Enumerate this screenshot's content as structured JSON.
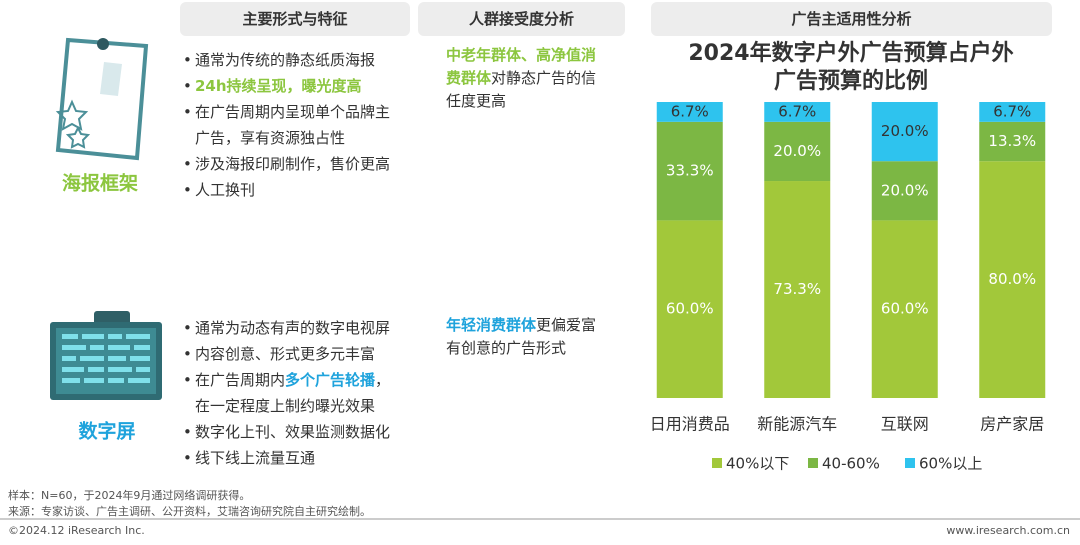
{
  "headers": [
    "主要形式与特征",
    "人群接受度分析",
    "广告主适用性分析"
  ],
  "rows": [
    {
      "label": "海报框架",
      "label_color": "#8cc63f",
      "features": [
        [
          {
            "text": "通常为传统的静态纸质海报"
          }
        ],
        [
          {
            "text": "24h持续呈现，曝光度高",
            "color": "#8cc63f"
          }
        ],
        [
          {
            "text": "在广告周期内呈现单个品牌主广告，享有资源独占性"
          }
        ],
        [
          {
            "text": "涉及海报印刷制作，售价更高"
          }
        ],
        [
          {
            "text": "人工换刊"
          }
        ]
      ],
      "audience": [
        {
          "text": "中老年群体、高净值消费群体",
          "color": "#8cc63f"
        },
        {
          "text": "对静态广告的信任度更高"
        }
      ]
    },
    {
      "label": "数字屏",
      "label_color": "#1fa3dc",
      "features": [
        [
          {
            "text": "通常为动态有声的数字电视屏"
          }
        ],
        [
          {
            "text": "内容创意、形式更多元丰富"
          }
        ],
        [
          {
            "text": "在广告周期内"
          },
          {
            "text": "多个广告轮播",
            "color": "#1fa3dc"
          },
          {
            "text": "，在一定程度上制约曝光效果"
          }
        ],
        [
          {
            "text": "数字化上刊、效果监测数据化"
          }
        ],
        [
          {
            "text": "线下线上流量互通"
          }
        ]
      ],
      "audience": [
        {
          "text": "年轻消费群体",
          "color": "#1fa3dc"
        },
        {
          "text": "更偏爱富有创意的广告形式"
        }
      ]
    }
  ],
  "chart_data": {
    "type": "stacked-bar",
    "title": [
      "2024年数字户外广告预算占户外",
      "广告预算的比例"
    ],
    "categories": [
      "日用消费品",
      "新能源汽车",
      "互联网",
      "房产家居"
    ],
    "ylim": [
      0,
      100
    ],
    "series": [
      {
        "name": "40%以下",
        "color": "#a2c83a",
        "label_color": "#ffffff",
        "values": [
          60.0,
          73.3,
          60.0,
          80.0
        ],
        "value_labels": [
          "60.0%",
          "73.3%",
          "60.0%",
          "80.0%"
        ]
      },
      {
        "name": "40-60%",
        "color": "#7cb744",
        "label_color": "#ffffff",
        "values": [
          33.3,
          20.0,
          20.0,
          13.3
        ],
        "value_labels": [
          "33.3%",
          "20.0%",
          "20.0%",
          "13.3%"
        ]
      },
      {
        "name": "60%以上",
        "color": "#2ec3ee",
        "label_color": "#333333",
        "values": [
          6.7,
          6.7,
          20.0,
          6.7
        ],
        "value_labels": [
          "6.7%",
          "6.7%",
          "20.0%",
          "6.7%"
        ]
      }
    ]
  },
  "footer": {
    "sample": "样本：N=60，于2024年9月通过网络调研获得。",
    "source": "来源：专家访谈、广告主调研、公开资料，艾瑞咨询研究院自主研究绘制。",
    "copyright": "©2024.12 iResearch Inc.",
    "website": "www.iresearch.com.cn"
  }
}
